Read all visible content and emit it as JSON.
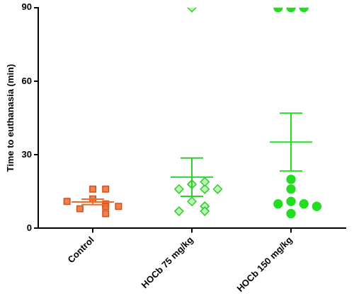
{
  "chart_data": {
    "type": "scatter",
    "y_label": "Time to euthanasia (min)",
    "ylim": [
      0,
      90
    ],
    "yticks": [
      0,
      30,
      60,
      90
    ],
    "grid": false,
    "series": [
      {
        "name": "Control",
        "color": "#f26b2a",
        "marker": "square",
        "values": [
          16,
          12,
          16,
          10,
          9,
          8,
          9,
          6,
          11
        ],
        "mean": 10.8,
        "error": 1.1
      },
      {
        "name": "HOCb 75 mg/kg",
        "color": "#33cc33",
        "marker": "diamond_open",
        "values": [
          90,
          18,
          16,
          16,
          16,
          19,
          11,
          9,
          7,
          7
        ],
        "mean": 20.9,
        "error": 7.8
      },
      {
        "name": "HOCb 150 mg/kg",
        "color": "#22dd22",
        "marker": "circle",
        "values": [
          90,
          90,
          90,
          20,
          16,
          11,
          10,
          10,
          9,
          6
        ],
        "mean": 35.2,
        "error": 11.8
      }
    ]
  }
}
